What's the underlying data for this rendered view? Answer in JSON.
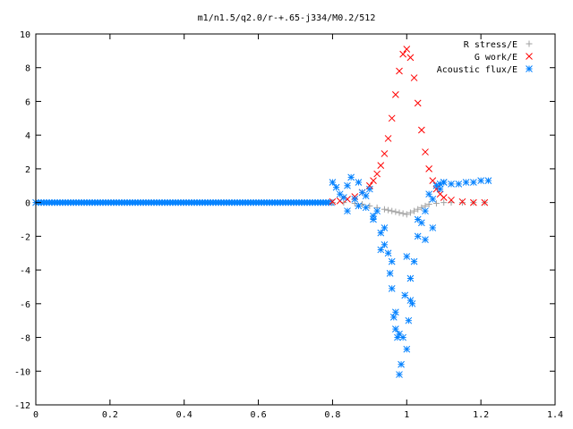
{
  "chart_data": {
    "type": "scatter",
    "title": "m1/n1.5/q2.0/r-+.65-j334/M0.2/512",
    "xlabel": "",
    "ylabel": "",
    "xlim": [
      0,
      1.4
    ],
    "ylim": [
      -12,
      10
    ],
    "xticks": [
      "0",
      "0.2",
      "0.4",
      "0.6",
      "0.8",
      "1",
      "1.2",
      "1.4"
    ],
    "yticks": [
      "10",
      "8",
      "6",
      "4",
      "2",
      "0",
      "-2",
      "-4",
      "-6",
      "-8",
      "-10",
      "-12"
    ],
    "grid": false,
    "legend_position": "top-right",
    "series": [
      {
        "name": "R stress/E",
        "marker": "plus",
        "color": "#a0a0a0",
        "x": [
          0.8,
          0.83,
          0.86,
          0.88,
          0.9,
          0.92,
          0.94,
          0.95,
          0.96,
          0.97,
          0.98,
          0.99,
          1.0,
          1.01,
          1.02,
          1.03,
          1.04,
          1.05,
          1.06,
          1.08,
          1.1,
          1.12,
          1.15,
          1.18,
          1.21
        ],
        "y": [
          0.0,
          0.0,
          -0.05,
          -0.1,
          -0.2,
          -0.3,
          -0.4,
          -0.45,
          -0.5,
          -0.55,
          -0.6,
          -0.65,
          -0.7,
          -0.6,
          -0.5,
          -0.4,
          -0.3,
          -0.2,
          -0.1,
          -0.05,
          0.0,
          0.0,
          0.0,
          0.0,
          0.0
        ]
      },
      {
        "name": "G work/E",
        "marker": "cross",
        "color": "#ff0000",
        "x": [
          0.8,
          0.82,
          0.84,
          0.86,
          0.88,
          0.9,
          0.91,
          0.92,
          0.93,
          0.94,
          0.95,
          0.96,
          0.97,
          0.98,
          0.99,
          1.0,
          1.01,
          1.02,
          1.03,
          1.04,
          1.05,
          1.06,
          1.07,
          1.08,
          1.09,
          1.1,
          1.12,
          1.15,
          1.18,
          1.21
        ],
        "y": [
          0.05,
          0.1,
          0.2,
          0.35,
          0.6,
          1.0,
          1.3,
          1.7,
          2.2,
          2.9,
          3.8,
          5.0,
          6.4,
          7.8,
          8.8,
          9.1,
          8.6,
          7.4,
          5.9,
          4.3,
          3.0,
          2.0,
          1.3,
          0.8,
          0.5,
          0.3,
          0.15,
          0.05,
          0.0,
          0.0
        ]
      },
      {
        "name": "Acoustic flux/E",
        "marker": "star",
        "color": "#0080ff",
        "x": [
          0.8,
          0.81,
          0.82,
          0.83,
          0.84,
          0.85,
          0.86,
          0.87,
          0.88,
          0.89,
          0.9,
          0.91,
          0.92,
          0.93,
          0.94,
          0.95,
          0.955,
          0.96,
          0.965,
          0.97,
          0.975,
          0.98,
          0.985,
          0.99,
          0.995,
          1.0,
          1.005,
          1.01,
          1.015,
          1.02,
          1.03,
          1.04,
          1.05,
          1.06,
          1.07,
          1.08,
          1.09,
          1.1,
          1.12,
          1.14,
          1.16,
          1.18,
          1.2,
          1.22,
          0.84,
          0.87,
          0.89,
          0.91,
          0.93,
          0.94,
          0.96,
          0.97,
          0.98,
          1.0,
          1.01,
          1.03,
          1.05,
          1.07,
          1.09,
          1.1
        ],
        "y": [
          1.2,
          0.9,
          0.5,
          0.3,
          1.0,
          1.5,
          0.2,
          1.2,
          0.6,
          -0.3,
          0.8,
          -1.0,
          -0.5,
          -1.8,
          -2.5,
          -3.0,
          -4.2,
          -5.1,
          -6.8,
          -7.5,
          -8.0,
          -10.2,
          -9.6,
          -8.0,
          -5.5,
          -3.2,
          -7.0,
          -4.5,
          -6.0,
          -3.5,
          -2.0,
          -1.2,
          -0.5,
          0.5,
          -1.5,
          1.0,
          0.8,
          1.2,
          1.1,
          1.1,
          1.2,
          1.2,
          1.3,
          1.3,
          -0.5,
          -0.2,
          0.4,
          -0.8,
          -2.8,
          -1.5,
          -3.5,
          -6.5,
          -7.8,
          -8.7,
          -5.8,
          -1.0,
          -2.2,
          0.2,
          1.1,
          1.2
        ]
      }
    ],
    "baseline_band": {
      "series": "Acoustic flux/E",
      "x_from": 0.0,
      "x_to": 0.8,
      "y": 0.0
    }
  }
}
